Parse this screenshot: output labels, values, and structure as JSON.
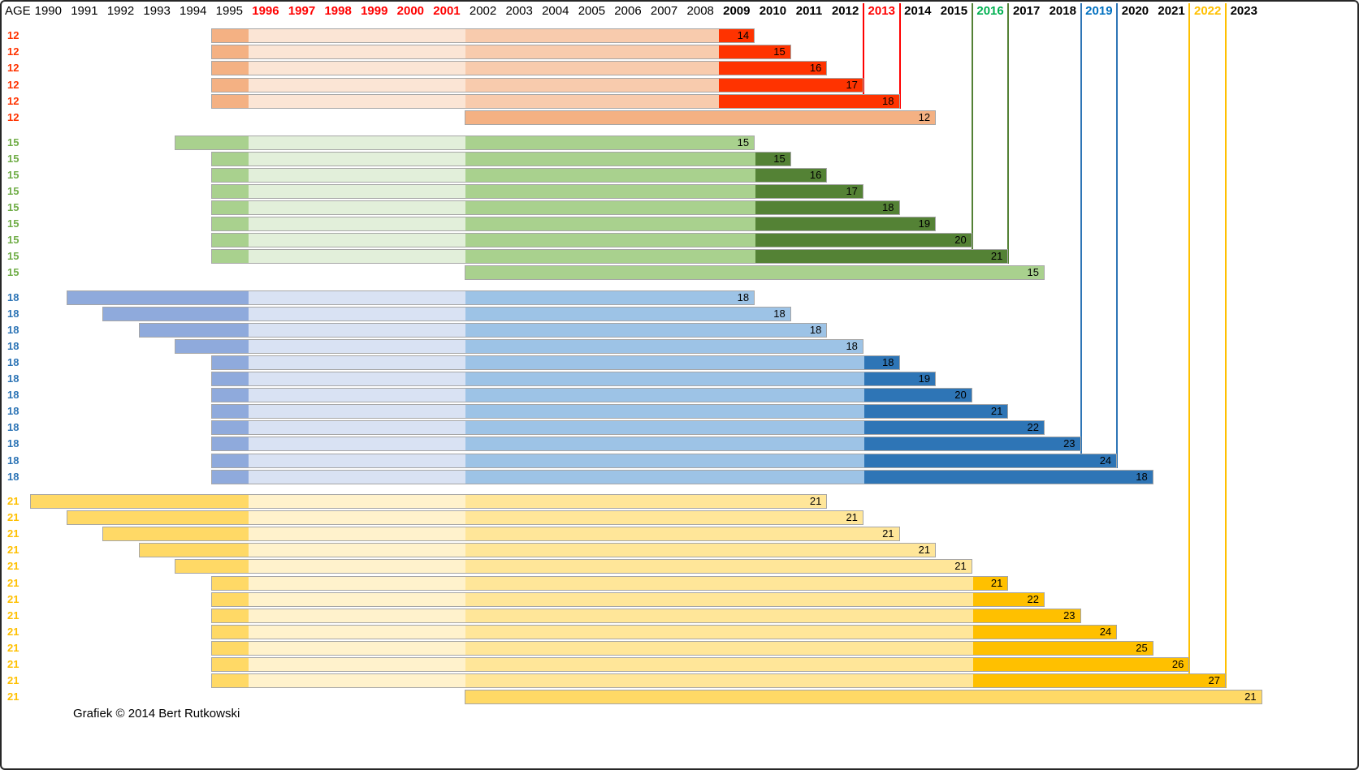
{
  "header": {
    "age_label": "AGE"
  },
  "footer": {
    "credit": "Grafiek © 2014 Bert Rutkowski"
  },
  "chart_data": {
    "type": "bar",
    "subtype": "gantt-timeline",
    "title": "",
    "x_axis": {
      "first_year": 1990,
      "last_year": 2023,
      "red_years": [
        1996,
        1997,
        1998,
        1999,
        2000,
        2001
      ],
      "bold_from": 2009,
      "years": [
        {
          "label": "1990",
          "color": "#000000",
          "bold": false
        },
        {
          "label": "1991",
          "color": "#000000",
          "bold": false
        },
        {
          "label": "1992",
          "color": "#000000",
          "bold": false
        },
        {
          "label": "1993",
          "color": "#000000",
          "bold": false
        },
        {
          "label": "1994",
          "color": "#000000",
          "bold": false
        },
        {
          "label": "1995",
          "color": "#000000",
          "bold": false
        },
        {
          "label": "1996",
          "color": "#FF0000",
          "bold": true
        },
        {
          "label": "1997",
          "color": "#FF0000",
          "bold": true
        },
        {
          "label": "1998",
          "color": "#FF0000",
          "bold": true
        },
        {
          "label": "1999",
          "color": "#FF0000",
          "bold": true
        },
        {
          "label": "2000",
          "color": "#FF0000",
          "bold": true
        },
        {
          "label": "2001",
          "color": "#FF0000",
          "bold": true
        },
        {
          "label": "2002",
          "color": "#000000",
          "bold": false
        },
        {
          "label": "2003",
          "color": "#000000",
          "bold": false
        },
        {
          "label": "2004",
          "color": "#000000",
          "bold": false
        },
        {
          "label": "2005",
          "color": "#000000",
          "bold": false
        },
        {
          "label": "2006",
          "color": "#000000",
          "bold": false
        },
        {
          "label": "2007",
          "color": "#000000",
          "bold": false
        },
        {
          "label": "2008",
          "color": "#000000",
          "bold": false
        },
        {
          "label": "2009",
          "color": "#000000",
          "bold": true
        },
        {
          "label": "2010",
          "color": "#000000",
          "bold": true
        },
        {
          "label": "2011",
          "color": "#000000",
          "bold": true
        },
        {
          "label": "2012",
          "color": "#000000",
          "bold": true
        },
        {
          "label": "2013",
          "color": "#FF0000",
          "bold": true
        },
        {
          "label": "2014",
          "color": "#000000",
          "bold": true
        },
        {
          "label": "2015",
          "color": "#000000",
          "bold": true
        },
        {
          "label": "2016",
          "color": "#00B050",
          "bold": true
        },
        {
          "label": "2017",
          "color": "#000000",
          "bold": true
        },
        {
          "label": "2018",
          "color": "#000000",
          "bold": true
        },
        {
          "label": "2019",
          "color": "#0070C0",
          "bold": true
        },
        {
          "label": "2020",
          "color": "#000000",
          "bold": true
        },
        {
          "label": "2021",
          "color": "#000000",
          "bold": true
        },
        {
          "label": "2022",
          "color": "#FFC000",
          "bold": true
        },
        {
          "label": "2023",
          "color": "#000000",
          "bold": true
        }
      ]
    },
    "groups": [
      {
        "age": "12",
        "label_color": "#FF3300",
        "colors": {
          "early": "#F4B183",
          "light": "#FBE5D5",
          "mid": "#F8CBAD",
          "dark": "#FF3300",
          "uniform": "#F4B183"
        },
        "bracket": {
          "year": 2013,
          "color": "#FF0000"
        },
        "rows": [
          {
            "start": 1995,
            "end": 2010,
            "dark_from": 2009,
            "value": "14"
          },
          {
            "start": 1995,
            "end": 2011,
            "dark_from": 2009,
            "value": "15"
          },
          {
            "start": 1995,
            "end": 2012,
            "dark_from": 2009,
            "value": "16"
          },
          {
            "start": 1995,
            "end": 2013,
            "dark_from": 2009,
            "value": "17"
          },
          {
            "start": 1995,
            "end": 2014,
            "dark_from": 2009,
            "value": "18"
          },
          {
            "start": 2002,
            "end": 2015,
            "dark_from": null,
            "value": "12",
            "uniform": true
          }
        ]
      },
      {
        "age": "15",
        "label_color": "#70AD47",
        "colors": {
          "early": "#A9D18E",
          "light": "#E2EFDA",
          "mid": "#A9D18E",
          "dark": "#548235",
          "uniform": "#A9D18E"
        },
        "bracket": {
          "year": 2016,
          "color": "#538135"
        },
        "rows": [
          {
            "start": 1994,
            "end": 2010,
            "dark_from": null,
            "value": "15"
          },
          {
            "start": 1995,
            "end": 2011,
            "dark_from": 2010,
            "value": "15"
          },
          {
            "start": 1995,
            "end": 2012,
            "dark_from": 2010,
            "value": "16"
          },
          {
            "start": 1995,
            "end": 2013,
            "dark_from": 2010,
            "value": "17"
          },
          {
            "start": 1995,
            "end": 2014,
            "dark_from": 2010,
            "value": "18"
          },
          {
            "start": 1995,
            "end": 2015,
            "dark_from": 2010,
            "value": "19"
          },
          {
            "start": 1995,
            "end": 2016,
            "dark_from": 2010,
            "value": "20"
          },
          {
            "start": 1995,
            "end": 2017,
            "dark_from": 2010,
            "value": "21"
          },
          {
            "start": 2002,
            "end": 2018,
            "dark_from": null,
            "value": "15",
            "uniform": true
          }
        ]
      },
      {
        "age": "18",
        "label_color": "#2E75B6",
        "colors": {
          "early": "#8FAADC",
          "light": "#D9E2F3",
          "mid": "#9DC3E6",
          "dark": "#2E75B6",
          "uniform": "#9DC3E6"
        },
        "bracket": {
          "year": 2019,
          "color": "#2E75B6"
        },
        "rows": [
          {
            "start": 1991,
            "end": 2010,
            "dark_from": null,
            "value": "18"
          },
          {
            "start": 1992,
            "end": 2011,
            "dark_from": null,
            "value": "18"
          },
          {
            "start": 1993,
            "end": 2012,
            "dark_from": null,
            "value": "18"
          },
          {
            "start": 1994,
            "end": 2013,
            "dark_from": null,
            "value": "18"
          },
          {
            "start": 1995,
            "end": 2014,
            "dark_from": 2013,
            "value": "18"
          },
          {
            "start": 1995,
            "end": 2015,
            "dark_from": 2013,
            "value": "19"
          },
          {
            "start": 1995,
            "end": 2016,
            "dark_from": 2013,
            "value": "20"
          },
          {
            "start": 1995,
            "end": 2017,
            "dark_from": 2013,
            "value": "21"
          },
          {
            "start": 1995,
            "end": 2018,
            "dark_from": 2013,
            "value": "22"
          },
          {
            "start": 1995,
            "end": 2019,
            "dark_from": 2013,
            "value": "23"
          },
          {
            "start": 1995,
            "end": 2020,
            "dark_from": 2013,
            "value": "24"
          },
          {
            "start": 1995,
            "end": 2021,
            "dark_from": 2013,
            "value": "18"
          }
        ]
      },
      {
        "age": "21",
        "label_color": "#FFC000",
        "colors": {
          "early": "#FFD966",
          "light": "#FFF2CC",
          "mid": "#FFE699",
          "dark": "#FFC000",
          "uniform": "#FFD966"
        },
        "bracket": {
          "year": 2022,
          "color": "#FFC000"
        },
        "rows": [
          {
            "start": 1990,
            "end": 2012,
            "dark_from": null,
            "value": "21"
          },
          {
            "start": 1991,
            "end": 2013,
            "dark_from": null,
            "value": "21"
          },
          {
            "start": 1992,
            "end": 2014,
            "dark_from": null,
            "value": "21"
          },
          {
            "start": 1993,
            "end": 2015,
            "dark_from": null,
            "value": "21"
          },
          {
            "start": 1994,
            "end": 2016,
            "dark_from": null,
            "value": "21"
          },
          {
            "start": 1995,
            "end": 2017,
            "dark_from": 2016,
            "value": "21"
          },
          {
            "start": 1995,
            "end": 2018,
            "dark_from": 2016,
            "value": "22"
          },
          {
            "start": 1995,
            "end": 2019,
            "dark_from": 2016,
            "value": "23"
          },
          {
            "start": 1995,
            "end": 2020,
            "dark_from": 2016,
            "value": "24"
          },
          {
            "start": 1995,
            "end": 2021,
            "dark_from": 2016,
            "value": "25"
          },
          {
            "start": 1995,
            "end": 2022,
            "dark_from": 2016,
            "value": "26"
          },
          {
            "start": 1995,
            "end": 2023,
            "dark_from": 2016,
            "value": "27"
          },
          {
            "start": 2002,
            "end": 2024,
            "dark_from": null,
            "value": "21",
            "uniform": true
          }
        ]
      }
    ]
  }
}
